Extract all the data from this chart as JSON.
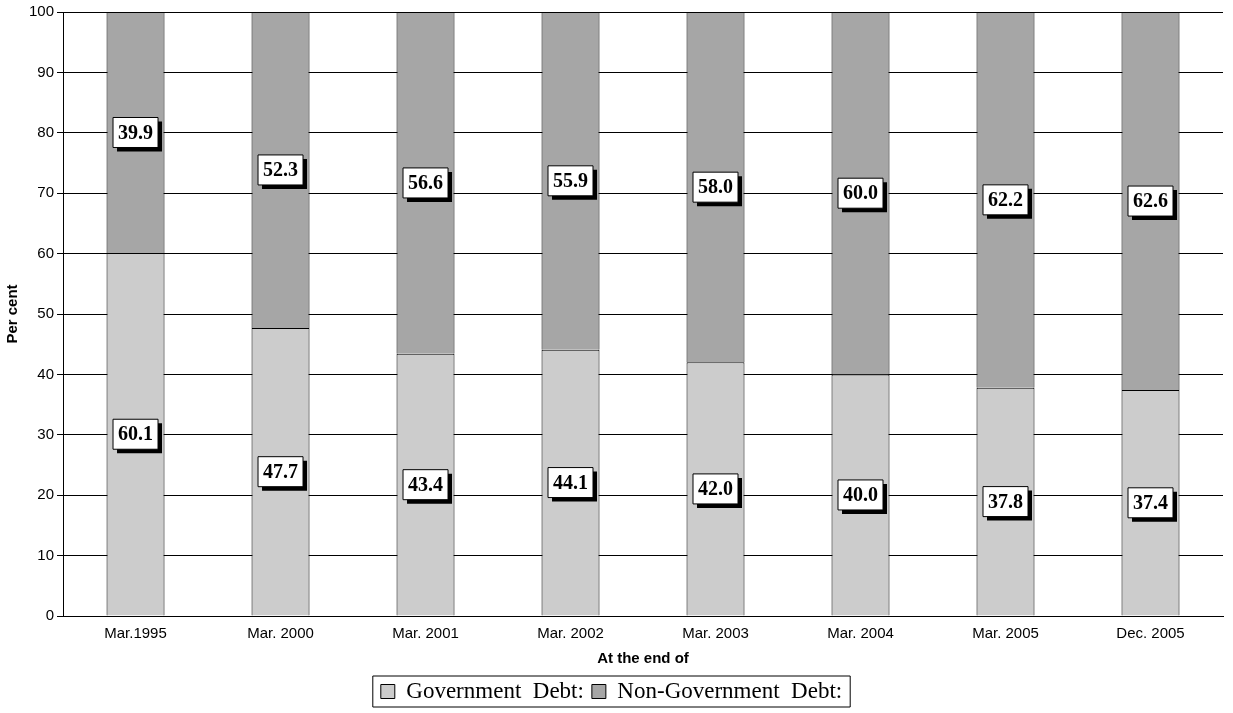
{
  "chart_data": {
    "type": "bar",
    "stacked": true,
    "xlabel": "At the end of",
    "ylabel": "Per cent",
    "categories": [
      "Mar.1995",
      "Mar. 2000",
      "Mar. 2001",
      "Mar. 2002",
      "Mar. 2003",
      "Mar. 2004",
      "Mar. 2005",
      "Dec. 2005"
    ],
    "series": [
      {
        "name": "Government  Debt:",
        "color": "#cccccc",
        "values": [
          60.1,
          47.7,
          43.4,
          44.1,
          42.0,
          40.0,
          37.8,
          37.4
        ],
        "value_labels": [
          "60.1",
          "47.7",
          "43.4",
          "44.1",
          "42.0",
          "40.0",
          "37.8",
          "37.4"
        ]
      },
      {
        "name": "Non-Government  Debt:",
        "color": "#a6a6a6",
        "values": [
          39.9,
          52.3,
          56.6,
          55.9,
          58.0,
          60.0,
          62.2,
          62.6
        ],
        "value_labels": [
          "39.9",
          "52.3",
          "56.6",
          "55.9",
          "58.0",
          "60.0",
          "62.2",
          "62.6"
        ]
      }
    ],
    "ylim": [
      0,
      100
    ],
    "yticks": [
      0,
      10,
      20,
      30,
      40,
      50,
      60,
      70,
      80,
      90,
      100
    ],
    "grid": "y",
    "legend": "bottom"
  }
}
